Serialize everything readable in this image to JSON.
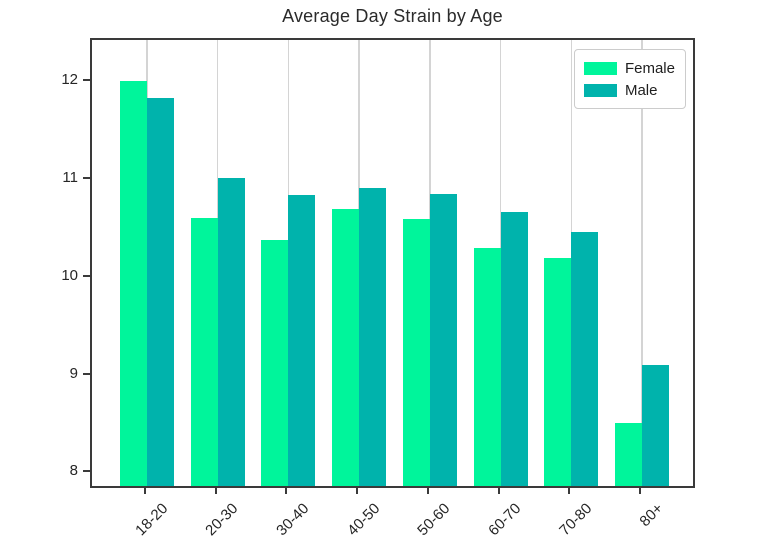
{
  "chart_data": {
    "type": "bar",
    "title": "Average Day Strain by Age",
    "xlabel": "",
    "ylabel": "",
    "categories": [
      "18-20",
      "20-30",
      "30-40",
      "40-50",
      "50-60",
      "60-70",
      "70-80",
      "80+"
    ],
    "series": [
      {
        "name": "Female",
        "color": "#00F59B",
        "values": [
          11.97,
          10.57,
          10.34,
          10.66,
          10.56,
          10.26,
          10.16,
          8.47
        ]
      },
      {
        "name": "Male",
        "color": "#00B3AC",
        "values": [
          11.8,
          10.98,
          10.8,
          10.88,
          10.81,
          10.63,
          10.43,
          9.07
        ]
      }
    ],
    "y_ticks": [
      8,
      9,
      10,
      11,
      12
    ],
    "ylim": [
      7.83,
      12.43
    ],
    "grid": "vertical-only",
    "grid_color": "#d4d4d4",
    "spine_color": "#3a3a3a",
    "legend_position": "upper right",
    "x_tick_rotation_deg": 45
  }
}
